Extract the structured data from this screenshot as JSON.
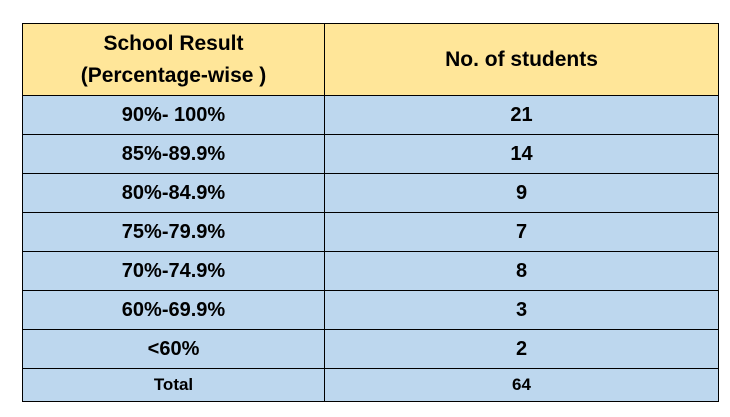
{
  "table": {
    "headers": {
      "col1_line1": "School Result",
      "col1_line2": "(Percentage-wise )",
      "col2": "No. of students"
    },
    "rows": [
      {
        "range": "90%- 100%",
        "count": "21"
      },
      {
        "range": "85%-89.9%",
        "count": "14"
      },
      {
        "range": "80%-84.9%",
        "count": "9"
      },
      {
        "range": "75%-79.9%",
        "count": "7"
      },
      {
        "range": "70%-74.9%",
        "count": "8"
      },
      {
        "range": "60%-69.9%",
        "count": "3"
      },
      {
        "range": "<60%",
        "count": "2"
      }
    ],
    "total": {
      "label": "Total",
      "count": "64"
    },
    "colors": {
      "header_bg": "#FFE699",
      "row_bg": "#BDD7EE",
      "border": "#000000"
    }
  }
}
